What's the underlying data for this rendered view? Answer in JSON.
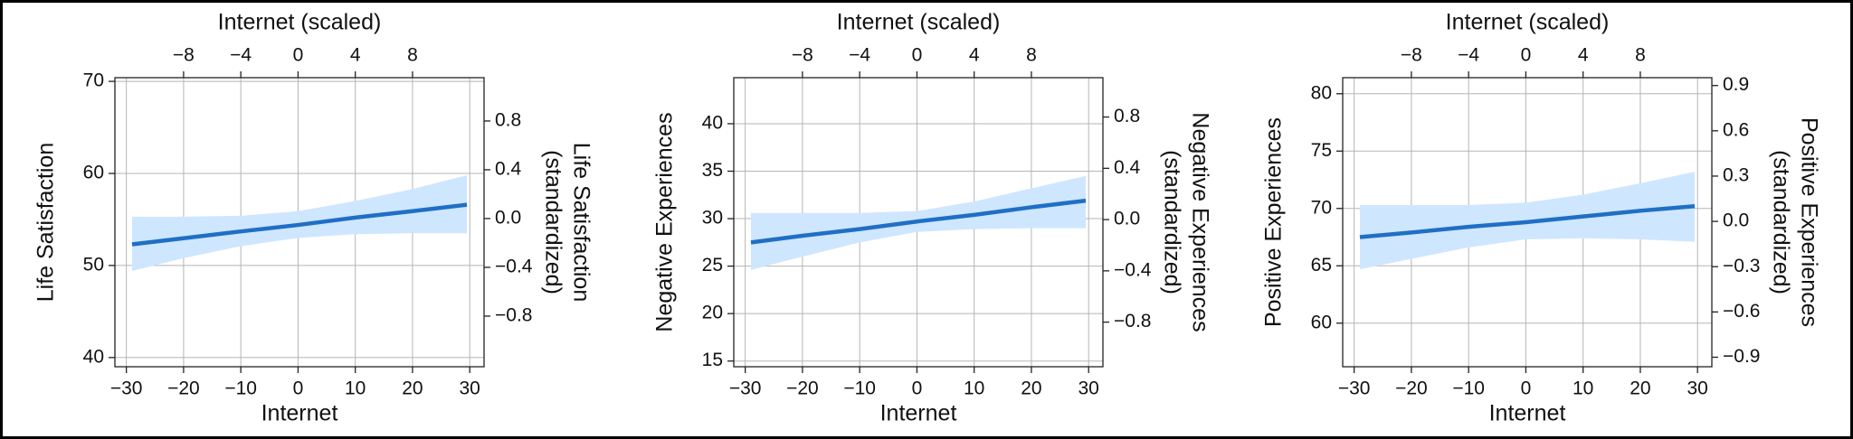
{
  "chart_data": [
    {
      "type": "line",
      "xlabel": "Internet",
      "x2label": "Internet (scaled)",
      "ylabel": "Life Satisfaction",
      "y2label": [
        "Life Satisfaction",
        "(standardized)"
      ],
      "xlim": [
        -32,
        32.5
      ],
      "xticks": [
        {
          "value": -30,
          "label": "−30"
        },
        {
          "value": -20,
          "label": "−20"
        },
        {
          "value": -10,
          "label": "−10"
        },
        0,
        10,
        20,
        30
      ],
      "x2lim": [
        -12.8,
        13
      ],
      "x2ticks": [
        {
          "value": -8,
          "label": "−8"
        },
        {
          "value": -4,
          "label": "−4"
        },
        0,
        4,
        8
      ],
      "ylim": [
        39,
        70.4
      ],
      "yticks": [
        40,
        50,
        60,
        70
      ],
      "y2lim": [
        -1.215,
        1.155
      ],
      "y2ticks": [
        0.8,
        0.4,
        {
          "value": 0,
          "label": "0.0"
        },
        {
          "value": -0.4,
          "label": "−0.4"
        },
        {
          "value": -0.8,
          "label": "−0.8"
        }
      ],
      "grid": true,
      "x": [
        -29,
        -20,
        -10,
        0,
        10,
        20,
        29.5
      ],
      "series": [
        {
          "color": "#1f6fc5",
          "values": [
            52.3,
            52.96,
            53.7,
            54.4,
            55.2,
            55.9,
            56.6
          ]
        }
      ],
      "band": {
        "color": "#cfe6ff",
        "lower": [
          49.4,
          50.8,
          52.1,
          53.0,
          53.4,
          53.5,
          53.5
        ],
        "upper": [
          55.3,
          55.3,
          55.4,
          55.9,
          57.0,
          58.3,
          59.8
        ]
      }
    },
    {
      "type": "line",
      "xlabel": "Internet",
      "x2label": "Internet (scaled)",
      "ylabel": "Negative Experiences",
      "y2label": [
        "Negative Experiences",
        "(standardized)"
      ],
      "xlim": [
        -32,
        32.5
      ],
      "xticks": [
        {
          "value": -30,
          "label": "−30"
        },
        {
          "value": -20,
          "label": "−20"
        },
        {
          "value": -10,
          "label": "−10"
        },
        0,
        10,
        20,
        30
      ],
      "x2lim": [
        -12.8,
        13
      ],
      "x2ticks": [
        {
          "value": -8,
          "label": "−8"
        },
        {
          "value": -4,
          "label": "−4"
        },
        0,
        4,
        8
      ],
      "ylim": [
        14.4,
        44.85
      ],
      "yticks": [
        15,
        20,
        25,
        30,
        35,
        40
      ],
      "y2lim": [
        -1.148,
        1.107
      ],
      "y2ticks": [
        0.8,
        0.4,
        {
          "value": 0,
          "label": "0.0"
        },
        {
          "value": -0.4,
          "label": "−0.4"
        },
        {
          "value": -0.8,
          "label": "−0.8"
        }
      ],
      "grid": true,
      "x": [
        -29,
        -20,
        -10,
        0,
        10,
        20,
        29.5
      ],
      "series": [
        {
          "color": "#1f6fc5",
          "values": [
            27.5,
            28.2,
            28.9,
            29.7,
            30.4,
            31.2,
            31.9
          ]
        }
      ],
      "band": {
        "color": "#cfe6ff",
        "lower": [
          24.6,
          26.0,
          27.5,
          28.6,
          28.9,
          29.0,
          29.0
        ],
        "upper": [
          30.6,
          30.6,
          30.6,
          30.8,
          31.8,
          33.2,
          34.5
        ]
      }
    },
    {
      "type": "line",
      "xlabel": "Internet",
      "x2label": "Internet (scaled)",
      "ylabel": "Positive Experiences",
      "y2label": [
        "Positive Experiences",
        "(standardized)"
      ],
      "xlim": [
        -32,
        32.5
      ],
      "xticks": [
        {
          "value": -30,
          "label": "−30"
        },
        {
          "value": -20,
          "label": "−20"
        },
        {
          "value": -10,
          "label": "−10"
        },
        0,
        10,
        20,
        30
      ],
      "x2lim": [
        -12.8,
        13
      ],
      "x2ticks": [
        {
          "value": -8,
          "label": "−8"
        },
        {
          "value": -4,
          "label": "−4"
        },
        0,
        4,
        8
      ],
      "ylim": [
        56.2,
        81.4
      ],
      "yticks": [
        60,
        65,
        70,
        75,
        80
      ],
      "y2lim": [
        -0.963,
        0.952
      ],
      "y2ticks": [
        0.9,
        0.6,
        0.3,
        {
          "value": 0,
          "label": "0.0"
        },
        {
          "value": -0.3,
          "label": "−0.3"
        },
        {
          "value": -0.6,
          "label": "−0.6"
        },
        {
          "value": -0.9,
          "label": "−0.9"
        }
      ],
      "grid": true,
      "x": [
        -29,
        -20,
        -10,
        0,
        10,
        20,
        29.5
      ],
      "series": [
        {
          "color": "#1f6fc5",
          "values": [
            67.5,
            67.9,
            68.4,
            68.8,
            69.3,
            69.8,
            70.2
          ]
        }
      ],
      "band": {
        "color": "#cfe6ff",
        "lower": [
          64.7,
          65.6,
          66.6,
          67.3,
          67.4,
          67.3,
          67.1
        ],
        "upper": [
          70.3,
          70.3,
          70.3,
          70.5,
          71.2,
          72.2,
          73.2
        ]
      }
    }
  ]
}
